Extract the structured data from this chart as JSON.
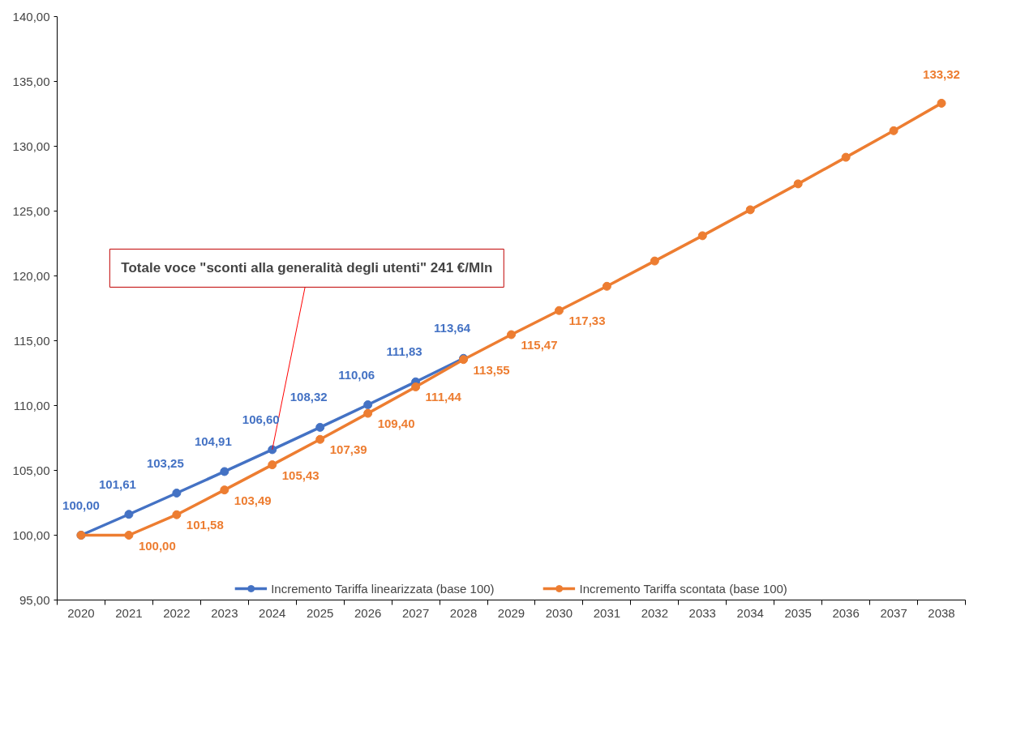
{
  "chart_data": {
    "type": "line",
    "categories": [
      "2020",
      "2021",
      "2022",
      "2023",
      "2024",
      "2025",
      "2026",
      "2027",
      "2028",
      "2029",
      "2030",
      "2031",
      "2032",
      "2033",
      "2034",
      "2035",
      "2036",
      "2037",
      "2038"
    ],
    "series": [
      {
        "name": "Incremento Tariffa linearizzata (base 100)",
        "color": "#4472c4",
        "values": [
          100.0,
          101.61,
          103.25,
          104.91,
          106.6,
          108.32,
          110.06,
          111.83,
          113.64,
          null,
          null,
          null,
          null,
          null,
          null,
          null,
          null,
          null,
          null
        ],
        "value_labels": [
          "100,00",
          "101,61",
          "103,25",
          "104,91",
          "106,60",
          "108,32",
          "110,06",
          "111,83",
          "113,64",
          null,
          null,
          null,
          null,
          null,
          null,
          null,
          null,
          null,
          null
        ]
      },
      {
        "name": "Incremento Tariffa scontata (base 100)",
        "color": "#ed7d31",
        "values": [
          100.0,
          100.0,
          101.58,
          103.49,
          105.43,
          107.39,
          109.4,
          111.44,
          113.55,
          115.47,
          117.33,
          119.2,
          121.15,
          123.1,
          125.1,
          127.1,
          129.15,
          131.2,
          133.32
        ],
        "value_labels": [
          null,
          "100,00",
          "101,58",
          "103,49",
          "105,43",
          "107,39",
          "109,40",
          "111,44",
          "113,55",
          "115,47",
          "117,33",
          null,
          null,
          null,
          null,
          null,
          null,
          null,
          "133,32"
        ]
      }
    ],
    "ylim": [
      95,
      140
    ],
    "yticks": [
      {
        "value": 95,
        "label": "95,00"
      },
      {
        "value": 100,
        "label": "100,00"
      },
      {
        "value": 105,
        "label": "105,00"
      },
      {
        "value": 110,
        "label": "110,00"
      },
      {
        "value": 115,
        "label": "115,00"
      },
      {
        "value": 120,
        "label": "120,00"
      },
      {
        "value": 125,
        "label": "125,00"
      },
      {
        "value": 130,
        "label": "130,00"
      },
      {
        "value": 135,
        "label": "135,00"
      },
      {
        "value": 140,
        "label": "140,00"
      }
    ],
    "annotations": [
      {
        "text": "Totale voce \"sconti alla generalità degli utenti\" 241 €/Mln",
        "x": "2024",
        "y": 106.6
      }
    ],
    "grid": false,
    "legend": "bottom",
    "marker": "circle",
    "line_style": "solid"
  }
}
